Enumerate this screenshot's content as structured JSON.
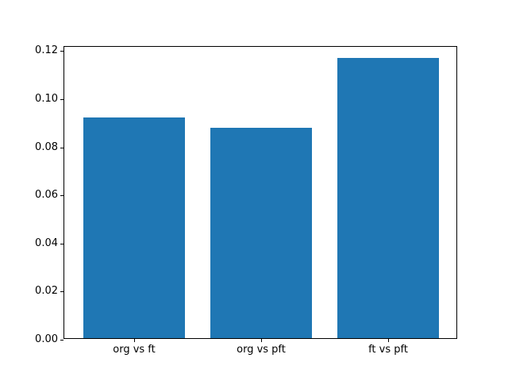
{
  "figure": {
    "background": "#ffffff"
  },
  "colors": {
    "bar": "#1f77b4",
    "axis": "#000000",
    "text": "#000000"
  },
  "chart_data": {
    "type": "bar",
    "categories": [
      "org vs ft",
      "org vs pft",
      "ft vs pft"
    ],
    "values": [
      0.0917,
      0.0875,
      0.1164
    ],
    "title": "",
    "xlabel": "",
    "ylabel": "",
    "ylim": [
      0,
      0.1218
    ],
    "xlim": [
      -0.55,
      2.55
    ],
    "bar_width": 0.8,
    "yticks": [
      0,
      0.02,
      0.04,
      0.06,
      0.08,
      0.1,
      0.12
    ],
    "ytick_labels": [
      "0.00",
      "0.02",
      "0.04",
      "0.06",
      "0.08",
      "0.10",
      "0.12"
    ],
    "grid": false,
    "legend": "none"
  }
}
